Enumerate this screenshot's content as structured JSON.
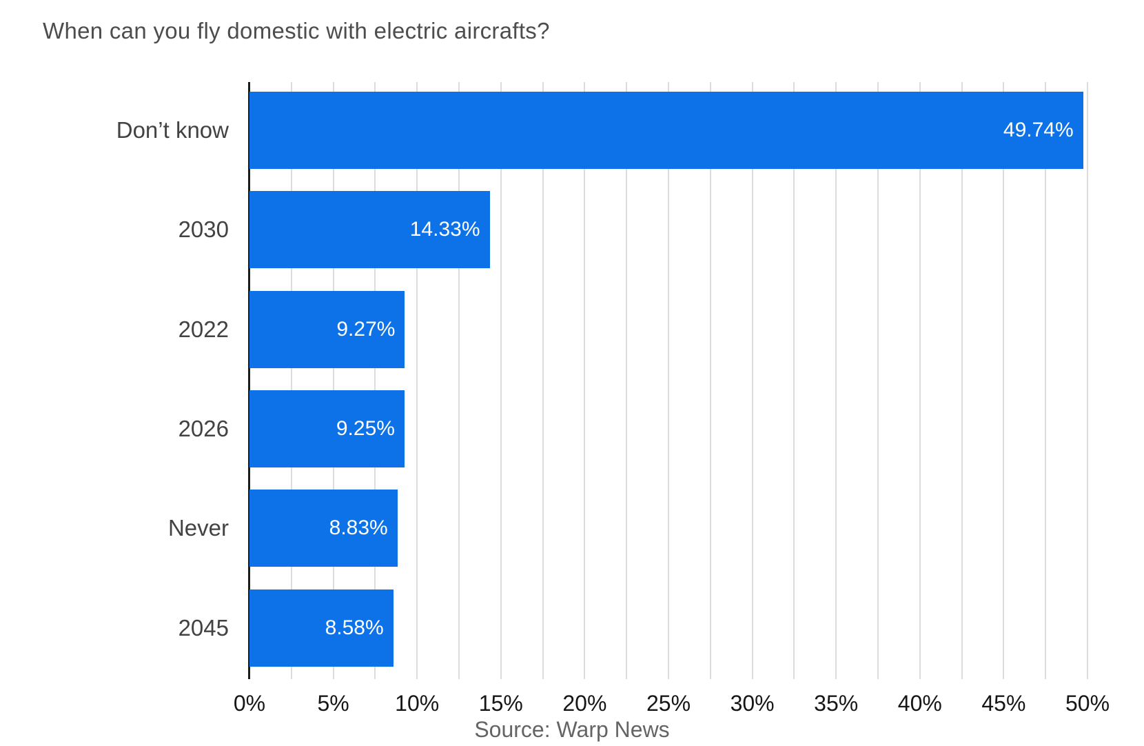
{
  "title": "When can you fly domestic with electric aircrafts?",
  "source": "Source: Warp News",
  "colors": {
    "bar": "#0d72e8",
    "bar_label": "#ffffff",
    "gridline": "#dcdcdc",
    "axis_line": "#1c1c1c",
    "title_text": "#4d4d4d",
    "category_text": "#424242",
    "tick_text": "#161616",
    "source_text": "#646464"
  },
  "chart_data": {
    "type": "bar",
    "orientation": "horizontal",
    "title": "When can you fly domestic with electric aircrafts?",
    "categories": [
      "Don’t know",
      "2030",
      "2022",
      "2026",
      "Never",
      "2045"
    ],
    "values": [
      49.74,
      14.33,
      9.27,
      9.25,
      8.83,
      8.58
    ],
    "value_labels": [
      "49.74%",
      "14.33%",
      "9.27%",
      "9.25%",
      "8.83%",
      "8.58%"
    ],
    "value_label_position": "inside-end",
    "xlabel": "",
    "ylabel": "",
    "xlim": [
      0,
      50
    ],
    "x_ticks": [
      "0%",
      "5%",
      "10%",
      "15%",
      "20%",
      "25%",
      "30%",
      "35%",
      "40%",
      "45%",
      "50%"
    ],
    "x_tick_step": 5,
    "minor_grid_step": 2.5,
    "grid": "vertical-minor",
    "legend": "none",
    "annotation": "Source: Warp News"
  }
}
